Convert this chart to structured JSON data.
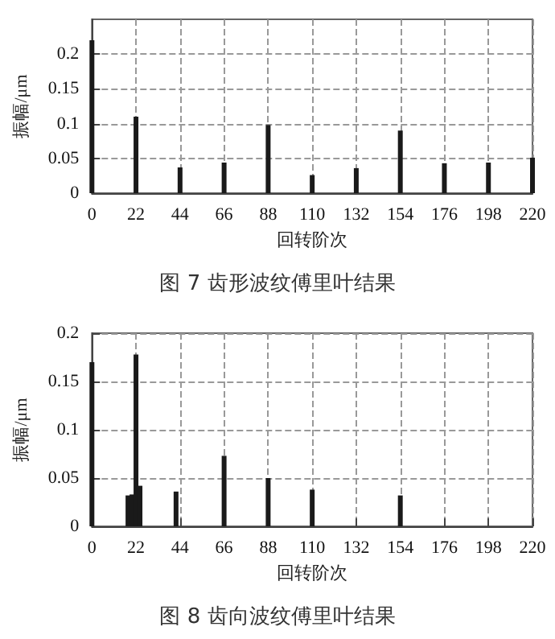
{
  "chart_data": [
    {
      "type": "bar",
      "title": "图 7 齿形波纹傅里叶结果",
      "xlabel": "回转阶次",
      "ylabel": "振幅/μm",
      "x": [
        0,
        22,
        44,
        66,
        88,
        110,
        132,
        154,
        176,
        198,
        220
      ],
      "series": [
        {
          "color": "#1a1a1a",
          "values": [
            0.22,
            0.11,
            0.037,
            0.044,
            0.098,
            0.026,
            0.036,
            0.09,
            0.043,
            0.044,
            0.051
          ]
        }
      ],
      "xlim": [
        0,
        220
      ],
      "xticks": [
        0,
        22,
        44,
        66,
        88,
        110,
        132,
        154,
        176,
        198,
        220
      ],
      "ylim": [
        0,
        0.25
      ],
      "yticks": [
        0,
        0.05,
        0.1,
        0.15,
        0.2
      ],
      "grid": true
    },
    {
      "type": "bar",
      "title": "图 8 齿向波纹傅里叶结果",
      "xlabel": "回转阶次",
      "ylabel": "振幅/μm",
      "x": [
        0,
        18,
        20,
        22,
        24,
        42,
        66,
        88,
        110,
        154
      ],
      "series": [
        {
          "color": "#1a1a1a",
          "values": [
            0.17,
            0.032,
            0.033,
            0.178,
            0.042,
            0.036,
            0.073,
            0.05,
            0.038,
            0.032
          ]
        }
      ],
      "xlim": [
        0,
        220
      ],
      "xticks": [
        0,
        22,
        44,
        66,
        88,
        110,
        132,
        154,
        176,
        198,
        220
      ],
      "ylim": [
        0,
        0.2
      ],
      "yticks": [
        0,
        0.05,
        0.1,
        0.15,
        0.2
      ],
      "grid": true
    }
  ]
}
